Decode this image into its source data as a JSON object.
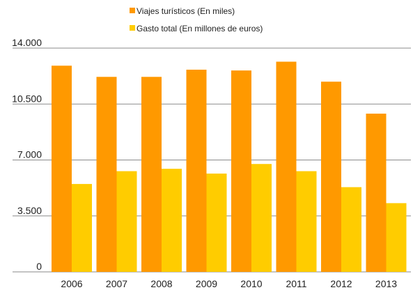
{
  "chart_data": {
    "type": "bar",
    "title": "",
    "xlabel": "",
    "ylabel": "",
    "categories": [
      "2006",
      "2007",
      "2008",
      "2009",
      "2010",
      "2011",
      "2012",
      "2013"
    ],
    "series": [
      {
        "name": "Viajes turísticos (En miles)",
        "color": "#FF9900",
        "values": [
          12900,
          12200,
          12200,
          12650,
          12600,
          13150,
          11900,
          9900
        ]
      },
      {
        "name": "Gasto total (En millones de euros)",
        "color": "#FFCC00",
        "values": [
          5500,
          6300,
          6450,
          6150,
          6750,
          6300,
          5300,
          4300
        ]
      }
    ],
    "ylim": [
      0,
      14000
    ],
    "yticks": [
      0,
      3500,
      7000,
      10500,
      14000
    ],
    "ytick_labels": [
      "0",
      "3.500",
      "7.000",
      "10.500",
      "14.000"
    ],
    "grid": true,
    "legend_position": "top-center"
  }
}
